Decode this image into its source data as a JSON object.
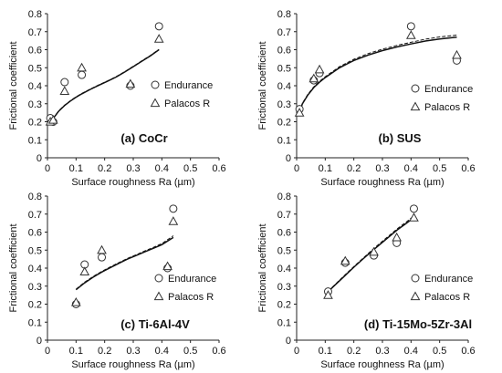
{
  "chart_data": [
    {
      "type": "scatter",
      "panel": "a",
      "title": "(a) CoCr",
      "xlabel": "Surface roughness Ra (µm)",
      "ylabel": "Frictional coefficient",
      "xlim": [
        0,
        0.6
      ],
      "ylim": [
        0,
        0.8
      ],
      "xticks": [
        "0",
        "0.1",
        "0.2",
        "0.3",
        "0.4",
        "0.5",
        "0.6"
      ],
      "yticks": [
        "0",
        "0.1",
        "0.2",
        "0.3",
        "0.4",
        "0.5",
        "0.6",
        "0.7",
        "0.8"
      ],
      "legend_position": "right",
      "series": [
        {
          "name": "Endurance",
          "marker": "circle",
          "x": [
            0.01,
            0.02,
            0.06,
            0.12,
            0.29,
            0.39
          ],
          "y": [
            0.22,
            0.2,
            0.42,
            0.46,
            0.4,
            0.73
          ]
        },
        {
          "name": "Palacos R",
          "marker": "triangle",
          "x": [
            0.01,
            0.02,
            0.06,
            0.12,
            0.29,
            0.39
          ],
          "y": [
            0.2,
            0.21,
            0.37,
            0.5,
            0.41,
            0.66
          ]
        }
      ],
      "fits": [
        {
          "style": "solid",
          "x": [
            0.01,
            0.02,
            0.04,
            0.06,
            0.08,
            0.1,
            0.12,
            0.15,
            0.18,
            0.21,
            0.24,
            0.27,
            0.3,
            0.33,
            0.36,
            0.39
          ],
          "y": [
            0.19,
            0.218,
            0.26,
            0.29,
            0.315,
            0.336,
            0.355,
            0.38,
            0.403,
            0.425,
            0.448,
            0.476,
            0.506,
            0.536,
            0.566,
            0.6
          ]
        },
        {
          "style": "dashed",
          "x": [
            0.01,
            0.02,
            0.04,
            0.06,
            0.08,
            0.1,
            0.12,
            0.15,
            0.18,
            0.21,
            0.24,
            0.27,
            0.3,
            0.33,
            0.36,
            0.39
          ],
          "y": [
            0.192,
            0.22,
            0.262,
            0.292,
            0.317,
            0.338,
            0.357,
            0.382,
            0.405,
            0.427,
            0.45,
            0.478,
            0.508,
            0.538,
            0.568,
            0.602
          ]
        }
      ]
    },
    {
      "type": "scatter",
      "panel": "b",
      "title": "(b) SUS",
      "xlabel": "Surface roughness Ra (µm)",
      "ylabel": "Frictional coefficient",
      "xlim": [
        0,
        0.6
      ],
      "ylim": [
        0,
        0.8
      ],
      "xticks": [
        "0",
        "0.1",
        "0.2",
        "0.3",
        "0.4",
        "0.5",
        "0.6"
      ],
      "yticks": [
        "0",
        "0.1",
        "0.2",
        "0.3",
        "0.4",
        "0.5",
        "0.6",
        "0.7",
        "0.8"
      ],
      "legend_position": "right",
      "series": [
        {
          "name": "Endurance",
          "marker": "circle",
          "x": [
            0.01,
            0.06,
            0.08,
            0.4,
            0.56
          ],
          "y": [
            0.27,
            0.43,
            0.47,
            0.73,
            0.54
          ]
        },
        {
          "name": "Palacos R",
          "marker": "triangle",
          "x": [
            0.01,
            0.06,
            0.08,
            0.4,
            0.56
          ],
          "y": [
            0.25,
            0.44,
            0.49,
            0.68,
            0.57
          ]
        }
      ],
      "fits": [
        {
          "style": "solid",
          "x": [
            0.01,
            0.02,
            0.04,
            0.06,
            0.08,
            0.1,
            0.15,
            0.2,
            0.25,
            0.3,
            0.35,
            0.4,
            0.45,
            0.5,
            0.56
          ],
          "y": [
            0.25,
            0.3,
            0.35,
            0.39,
            0.42,
            0.445,
            0.5,
            0.54,
            0.57,
            0.595,
            0.615,
            0.632,
            0.648,
            0.66,
            0.67
          ]
        },
        {
          "style": "dashed",
          "x": [
            0.01,
            0.02,
            0.04,
            0.06,
            0.08,
            0.1,
            0.15,
            0.2,
            0.25,
            0.3,
            0.35,
            0.4,
            0.45,
            0.5,
            0.56
          ],
          "y": [
            0.252,
            0.303,
            0.354,
            0.394,
            0.425,
            0.45,
            0.506,
            0.547,
            0.578,
            0.603,
            0.624,
            0.641,
            0.658,
            0.671,
            0.681
          ]
        }
      ]
    },
    {
      "type": "scatter",
      "panel": "c",
      "title": "(c) Ti-6Al-4V",
      "xlabel": "Surface roughness Ra (µm)",
      "ylabel": "Frictional coefficient",
      "xlim": [
        0,
        0.6
      ],
      "ylim": [
        0,
        0.8
      ],
      "xticks": [
        "0",
        "0.1",
        "0.2",
        "0.3",
        "0.4",
        "0.5",
        "0.6"
      ],
      "yticks": [
        "0",
        "0.1",
        "0.2",
        "0.3",
        "0.4",
        "0.5",
        "0.6",
        "0.7",
        "0.8"
      ],
      "legend_position": "right",
      "series": [
        {
          "name": "Endurance",
          "marker": "circle",
          "x": [
            0.1,
            0.13,
            0.19,
            0.42,
            0.44
          ],
          "y": [
            0.2,
            0.42,
            0.46,
            0.4,
            0.73
          ]
        },
        {
          "name": "Palacos R",
          "marker": "triangle",
          "x": [
            0.1,
            0.13,
            0.19,
            0.42,
            0.44
          ],
          "y": [
            0.21,
            0.38,
            0.5,
            0.41,
            0.66
          ]
        }
      ],
      "fits": [
        {
          "style": "solid",
          "x": [
            0.1,
            0.13,
            0.16,
            0.19,
            0.22,
            0.25,
            0.28,
            0.31,
            0.34,
            0.37,
            0.4,
            0.44
          ],
          "y": [
            0.28,
            0.318,
            0.35,
            0.378,
            0.403,
            0.427,
            0.45,
            0.47,
            0.49,
            0.51,
            0.53,
            0.57
          ]
        },
        {
          "style": "dashed",
          "x": [
            0.1,
            0.13,
            0.16,
            0.19,
            0.22,
            0.25,
            0.28,
            0.31,
            0.34,
            0.37,
            0.4,
            0.44
          ],
          "y": [
            0.283,
            0.322,
            0.354,
            0.382,
            0.407,
            0.431,
            0.454,
            0.474,
            0.495,
            0.515,
            0.536,
            0.58
          ]
        }
      ]
    },
    {
      "type": "scatter",
      "panel": "d",
      "title": "(d) Ti-15Mo-5Zr-3Al",
      "xlabel": "Surface roughness Ra (µm)",
      "ylabel": "Frictional coefficient",
      "xlim": [
        0,
        0.6
      ],
      "ylim": [
        0,
        0.8
      ],
      "xticks": [
        "0",
        "0.1",
        "0.2",
        "0.3",
        "0.4",
        "0.5",
        "0.6"
      ],
      "yticks": [
        "0",
        "0.1",
        "0.2",
        "0.3",
        "0.4",
        "0.5",
        "0.6",
        "0.7",
        "0.8"
      ],
      "legend_position": "right",
      "series": [
        {
          "name": "Endurance",
          "marker": "circle",
          "x": [
            0.11,
            0.17,
            0.27,
            0.35,
            0.41
          ],
          "y": [
            0.27,
            0.43,
            0.47,
            0.54,
            0.73
          ]
        },
        {
          "name": "Palacos R",
          "marker": "triangle",
          "x": [
            0.11,
            0.17,
            0.27,
            0.35,
            0.41
          ],
          "y": [
            0.25,
            0.44,
            0.49,
            0.57,
            0.68
          ]
        }
      ],
      "fits": [
        {
          "style": "solid",
          "x": [
            0.11,
            0.14,
            0.17,
            0.2,
            0.23,
            0.26,
            0.29,
            0.32,
            0.35,
            0.38,
            0.41
          ],
          "y": [
            0.27,
            0.315,
            0.36,
            0.405,
            0.448,
            0.49,
            0.53,
            0.57,
            0.61,
            0.645,
            0.68
          ]
        },
        {
          "style": "dashed",
          "x": [
            0.11,
            0.14,
            0.17,
            0.2,
            0.23,
            0.26,
            0.29,
            0.32,
            0.35,
            0.38,
            0.41
          ],
          "y": [
            0.272,
            0.318,
            0.364,
            0.409,
            0.452,
            0.495,
            0.536,
            0.576,
            0.616,
            0.652,
            0.69
          ]
        }
      ]
    }
  ]
}
